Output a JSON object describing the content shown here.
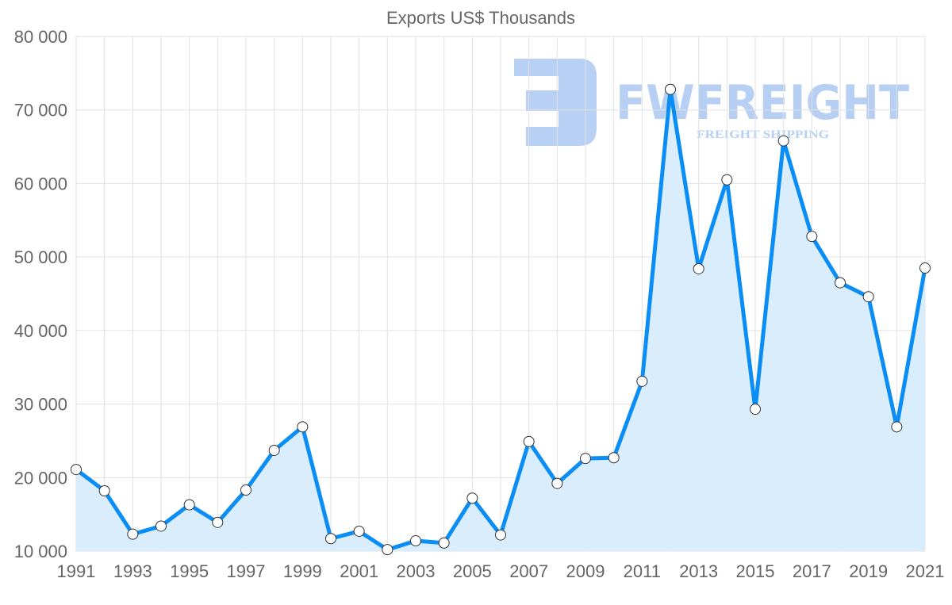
{
  "chart_data": {
    "type": "line",
    "title": "Exports US$ Thousands",
    "xlabel": "",
    "ylabel": "",
    "x": [
      1991,
      1992,
      1993,
      1994,
      1995,
      1996,
      1997,
      1998,
      1999,
      2000,
      2001,
      2002,
      2003,
      2004,
      2005,
      2006,
      2007,
      2008,
      2009,
      2010,
      2011,
      2012,
      2013,
      2014,
      2015,
      2016,
      2017,
      2018,
      2019,
      2020,
      2021
    ],
    "series": [
      {
        "name": "Exports US$ Thousands",
        "values": [
          21100,
          18200,
          12300,
          13400,
          16300,
          13900,
          18300,
          23700,
          26900,
          11700,
          12700,
          10200,
          11400,
          11100,
          17200,
          12200,
          24900,
          19200,
          22600,
          22700,
          33100,
          72800,
          48400,
          60500,
          29300,
          65800,
          52800,
          46500,
          44600,
          26900,
          48500
        ]
      }
    ],
    "ylim": [
      10000,
      80000
    ],
    "xlim": [
      1991,
      2021
    ],
    "yticks": [
      10000,
      20000,
      30000,
      40000,
      50000,
      60000,
      70000,
      80000
    ],
    "ytick_labels": [
      "10 000",
      "20 000",
      "30 000",
      "40 000",
      "50 000",
      "60 000",
      "70 000",
      "80 000"
    ],
    "xtick_labels": [
      "1991",
      "1993",
      "1995",
      "1997",
      "1999",
      "2001",
      "2003",
      "2005",
      "2007",
      "2009",
      "2011",
      "2013",
      "2015",
      "2017",
      "2019",
      "2021"
    ],
    "grid": true,
    "legend": "none",
    "colors": {
      "line": "#0a8ef5",
      "fill": "#d8ecfd",
      "grid": "#e2e2e2",
      "logo": "#aec8f2"
    }
  },
  "watermark": {
    "brand": "FWFREIGHT",
    "tagline": "FREIGHT SHIPPING"
  }
}
